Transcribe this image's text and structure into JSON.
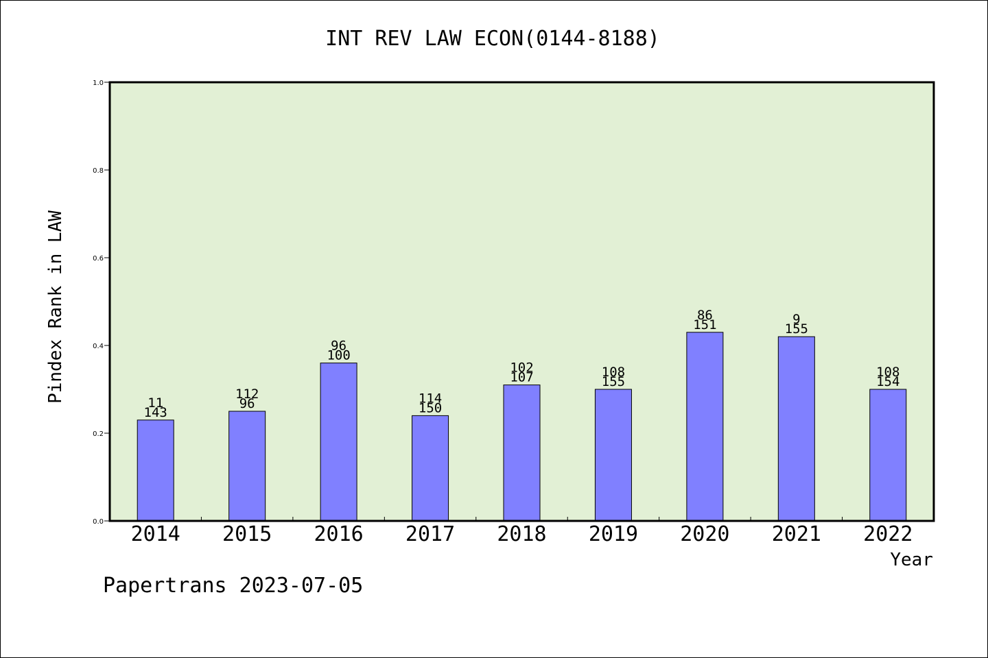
{
  "chart_data": {
    "type": "bar",
    "title": "INT REV LAW ECON(0144-8188)",
    "xlabel": "Year",
    "ylabel": "Pindex Rank in LAW",
    "categories": [
      "2014",
      "2015",
      "2016",
      "2017",
      "2018",
      "2019",
      "2020",
      "2021",
      "2022"
    ],
    "values": [
      0.23,
      0.25,
      0.36,
      0.24,
      0.31,
      0.3,
      0.43,
      0.42,
      0.3
    ],
    "labels_top": [
      "11",
      "112",
      "96",
      "114",
      "102",
      "108",
      "86",
      "9",
      "108"
    ],
    "labels_bottom": [
      "143",
      "96",
      "100",
      "150",
      "107",
      "155",
      "151",
      "155",
      "154"
    ],
    "ylim": [
      0,
      1.0
    ],
    "yticks": [
      "0.0",
      "0.2",
      "0.4",
      "0.6",
      "0.8",
      "1.0"
    ],
    "grid": false,
    "colors": {
      "plot_background": "#e2f0d5",
      "bar_fill": "#8080ff",
      "bar_stroke": "#000000"
    }
  },
  "footer": {
    "source": "Papertrans 2023-07-05"
  }
}
